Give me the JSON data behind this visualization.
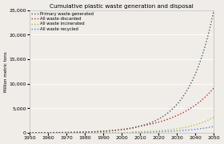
{
  "title": "Cumulative plastic waste generation and disposal",
  "ylabel": "Million metric tons",
  "xlim": [
    1950,
    2050
  ],
  "ylim": [
    0,
    25000
  ],
  "yticks": [
    0,
    5000,
    10000,
    15000,
    20000,
    25000
  ],
  "xticks": [
    1950,
    1960,
    1970,
    1980,
    1990,
    2000,
    2010,
    2020,
    2030,
    2040,
    2050
  ],
  "series": {
    "Primary waste generated": {
      "color": "#555555",
      "linestyle": "dotted",
      "linewidth": 1.0,
      "zorder": 5
    },
    "All waste discarded": {
      "color": "#cc2222",
      "linestyle": "dotted",
      "linewidth": 1.0,
      "zorder": 4
    },
    "All waste incinerated": {
      "color": "#bbbb44",
      "linestyle": "dotted",
      "linewidth": 1.0,
      "zorder": 3
    },
    "All waste recycled": {
      "color": "#4488cc",
      "linestyle": "dotted",
      "linewidth": 1.0,
      "zorder": 2
    }
  },
  "background_color": "#f0ede8"
}
